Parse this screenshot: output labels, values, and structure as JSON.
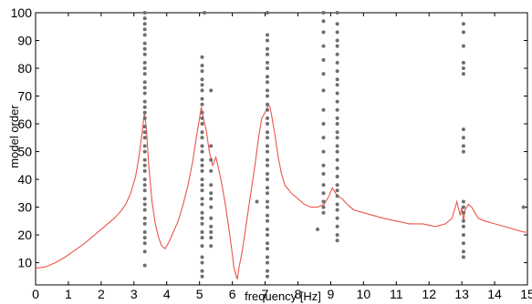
{
  "chart_data": {
    "type": "scatter",
    "title": "",
    "xlabel": "frequency [Hz]",
    "ylabel": "model order",
    "xlim": [
      0,
      15
    ],
    "ylim": [
      2,
      100
    ],
    "xticks": [
      0,
      1,
      2,
      3,
      4,
      5,
      6,
      7,
      8,
      9,
      10,
      11,
      12,
      13,
      14,
      15
    ],
    "yticks": [
      10,
      20,
      30,
      40,
      50,
      60,
      70,
      80,
      90,
      100
    ],
    "grid": false,
    "legend": "none",
    "colors": {
      "spectrum": "#e8564a",
      "poles": "#6e6e6e"
    },
    "spectrum": {
      "x": [
        0,
        0.3,
        0.6,
        0.9,
        1.2,
        1.5,
        1.8,
        2.1,
        2.4,
        2.6,
        2.75,
        2.9,
        3.05,
        3.15,
        3.25,
        3.32,
        3.38,
        3.45,
        3.55,
        3.65,
        3.75,
        3.85,
        3.95,
        4.05,
        4.2,
        4.35,
        4.5,
        4.65,
        4.8,
        4.9,
        5.0,
        5.05,
        5.1,
        5.15,
        5.2,
        5.25,
        5.3,
        5.4,
        5.5,
        5.6,
        5.7,
        5.8,
        5.9,
        6.0,
        6.05,
        6.1,
        6.15,
        6.2,
        6.3,
        6.4,
        6.5,
        6.6,
        6.7,
        6.8,
        6.9,
        7.0,
        7.1,
        7.15,
        7.2,
        7.3,
        7.4,
        7.5,
        7.6,
        7.8,
        8.0,
        8.2,
        8.4,
        8.6,
        8.8,
        8.95,
        9.05,
        9.1,
        9.2,
        9.35,
        9.5,
        9.7,
        10.0,
        10.3,
        10.6,
        11.0,
        11.4,
        11.8,
        12.2,
        12.5,
        12.7,
        12.85,
        12.95,
        13.0,
        13.05,
        13.1,
        13.2,
        13.3,
        13.4,
        13.5,
        13.7,
        14.0,
        14.3,
        14.6,
        14.9,
        15.0
      ],
      "y": [
        8,
        8.5,
        10,
        12,
        14.5,
        17,
        20,
        23,
        26,
        28.5,
        31,
        35,
        41,
        48,
        57,
        64,
        58,
        45,
        32,
        24,
        19,
        16,
        15,
        17,
        21,
        25,
        31,
        38,
        47,
        55,
        62,
        66,
        63,
        60,
        58,
        54,
        50,
        45,
        48,
        43,
        37,
        30,
        22,
        13,
        8,
        6,
        4,
        8,
        14,
        22,
        30,
        38,
        46,
        55,
        62,
        64,
        67,
        66,
        63,
        56,
        48,
        42,
        38,
        35,
        33,
        31,
        30,
        30,
        31,
        34,
        37,
        36,
        34,
        33,
        31,
        29,
        28,
        27,
        26,
        25,
        24,
        24,
        23,
        24,
        26,
        32,
        27,
        30,
        25,
        29,
        31,
        30,
        28,
        26,
        25,
        24,
        23,
        22,
        21,
        21
      ]
    },
    "poles": [
      {
        "x": 3.33,
        "y": [
          9,
          14,
          17,
          19,
          21,
          24,
          26,
          29,
          31,
          33,
          36,
          38,
          40,
          43,
          45,
          47,
          50,
          52,
          55,
          57,
          59,
          62,
          64,
          66,
          68,
          71,
          73,
          75,
          78,
          80,
          82,
          85,
          87,
          89,
          92,
          94,
          96,
          98,
          100
        ]
      },
      {
        "x": 5.08,
        "y": [
          5,
          7,
          10,
          12,
          16,
          19,
          21,
          24,
          26,
          28,
          31,
          33,
          36,
          38,
          40,
          43,
          45,
          47,
          50,
          52,
          55,
          57,
          60,
          62,
          64,
          67,
          69,
          72,
          74,
          76,
          79,
          81,
          84
        ]
      },
      {
        "x": 5.35,
        "y": [
          16,
          19,
          21,
          23,
          26,
          30,
          33,
          35,
          38,
          43,
          47,
          52,
          72
        ]
      },
      {
        "x": 5.15,
        "y": [
          100
        ]
      },
      {
        "x": 6.75,
        "y": [
          32
        ]
      },
      {
        "x": 7.07,
        "y": [
          5,
          7,
          10,
          12,
          15,
          17,
          20,
          22,
          25,
          27,
          30,
          32,
          35,
          37,
          40,
          42,
          45,
          47,
          50,
          52,
          55,
          57,
          60,
          62,
          65,
          67,
          70,
          72,
          75,
          77,
          80,
          82,
          85,
          87,
          90,
          92,
          100
        ]
      },
      {
        "x": 8.6,
        "y": [
          22
        ]
      },
      {
        "x": 8.78,
        "y": [
          28,
          30,
          32,
          35,
          38,
          42,
          45,
          50,
          55,
          60,
          65,
          72,
          78,
          83,
          88,
          93,
          97,
          100
        ]
      },
      {
        "x": 9.2,
        "y": [
          18,
          20,
          23,
          26,
          29,
          31,
          34,
          36,
          38,
          41,
          44,
          47,
          50,
          52,
          55,
          57,
          60,
          62,
          65,
          68,
          71,
          74,
          76,
          79,
          82,
          85,
          88,
          90,
          93,
          96,
          100
        ]
      },
      {
        "x": 13.05,
        "y": [
          12,
          14,
          17,
          20,
          23,
          25,
          28,
          30,
          32,
          50,
          52,
          55,
          58,
          78,
          80,
          82,
          88,
          93,
          96
        ]
      },
      {
        "x": 14.88,
        "y": [
          30
        ]
      }
    ]
  }
}
